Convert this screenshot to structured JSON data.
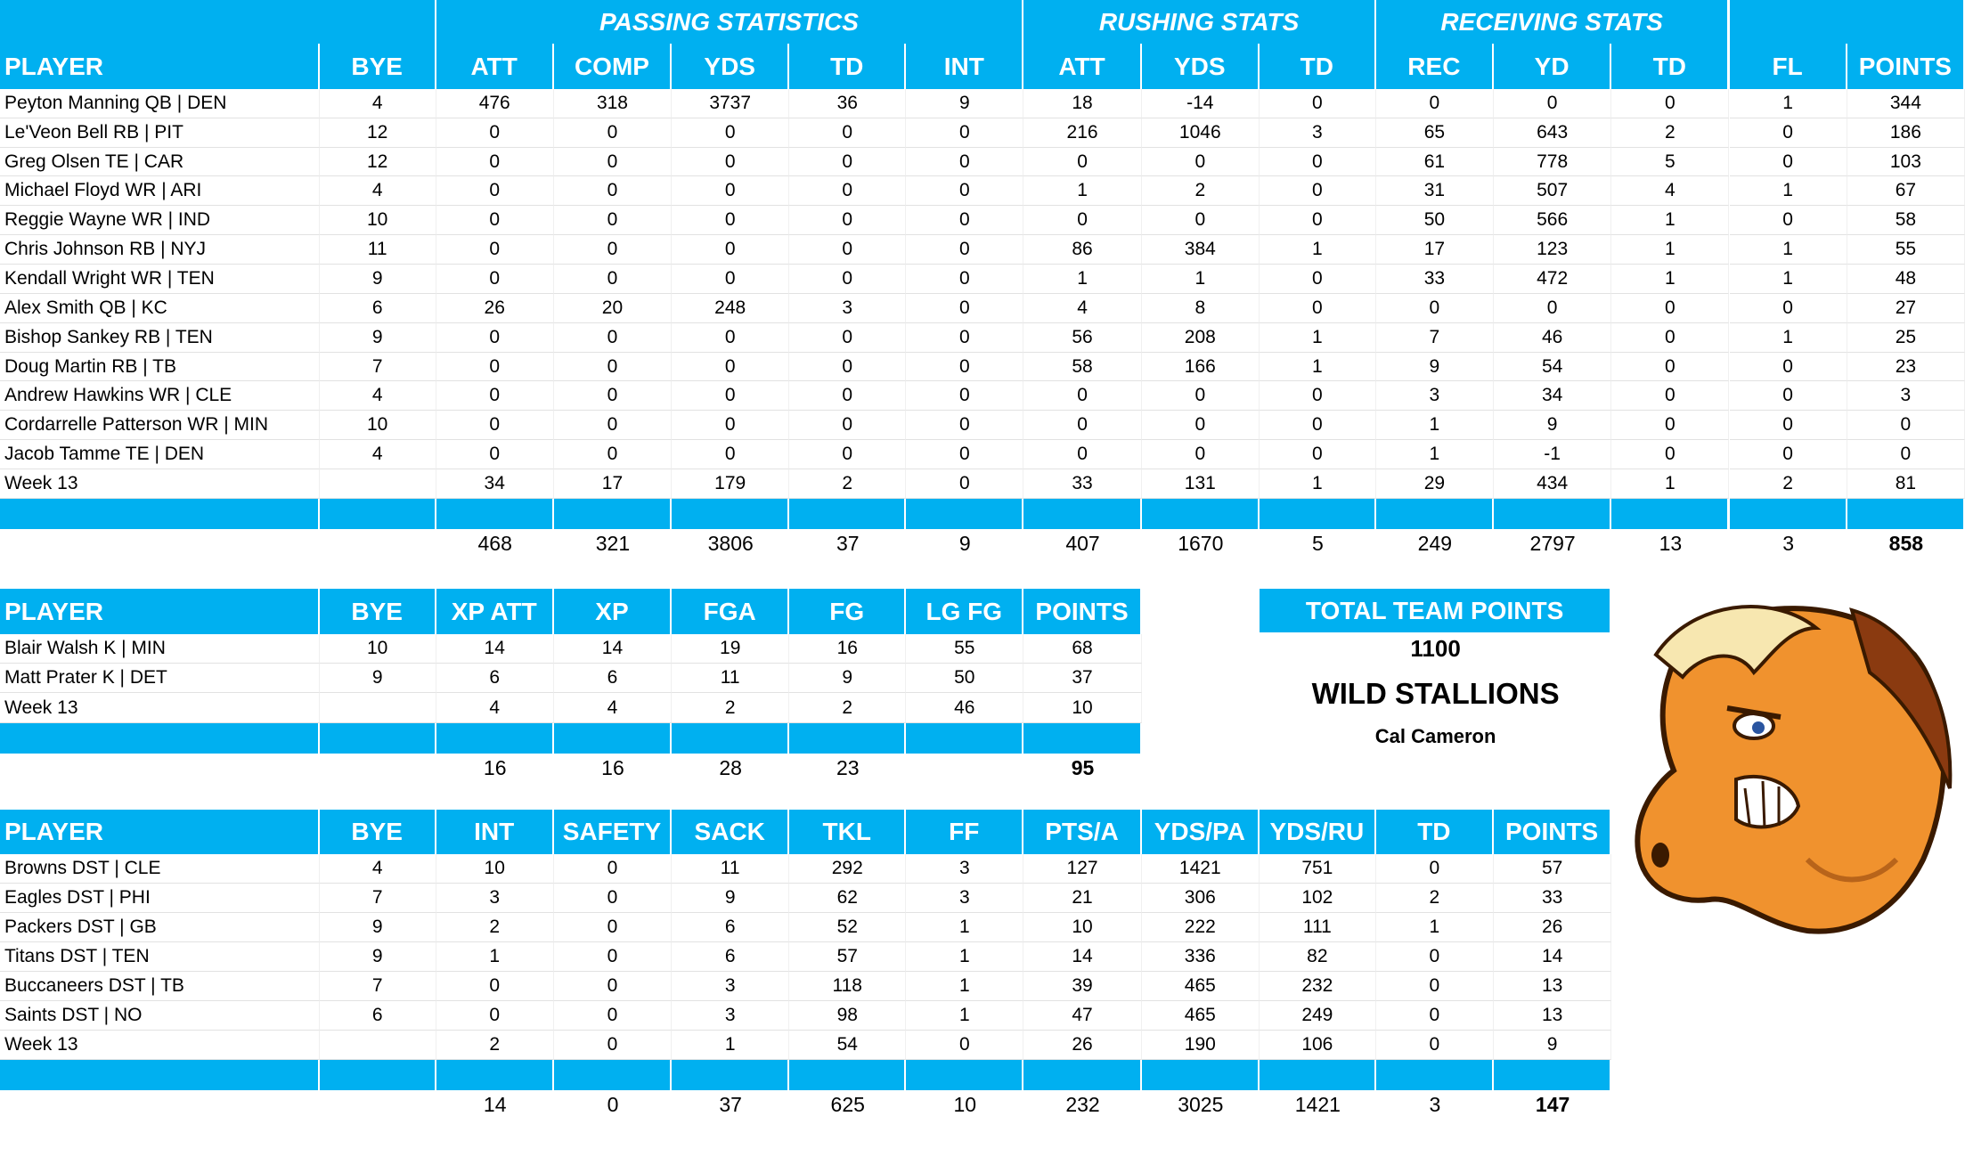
{
  "offense_table": {
    "group_headers": [
      "PASSING STATISTICS",
      "RUSHING STATS",
      "RECEIVING STATS"
    ],
    "columns": [
      "PLAYER",
      "BYE",
      "ATT",
      "COMP",
      "YDS",
      "TD",
      "INT",
      "ATT",
      "YDS",
      "TD",
      "REC",
      "YD",
      "TD",
      "FL",
      "POINTS"
    ],
    "rows": [
      [
        "Peyton Manning QB | DEN",
        4,
        476,
        318,
        3737,
        36,
        9,
        18,
        -14,
        0,
        0,
        0,
        0,
        1,
        344
      ],
      [
        "Le'Veon Bell RB | PIT",
        12,
        0,
        0,
        0,
        0,
        0,
        216,
        1046,
        3,
        65,
        643,
        2,
        0,
        186
      ],
      [
        "Greg Olsen TE | CAR",
        12,
        0,
        0,
        0,
        0,
        0,
        0,
        0,
        0,
        61,
        778,
        5,
        0,
        103
      ],
      [
        "Michael Floyd WR | ARI",
        4,
        0,
        0,
        0,
        0,
        0,
        1,
        2,
        0,
        31,
        507,
        4,
        1,
        67
      ],
      [
        "Reggie Wayne WR | IND",
        10,
        0,
        0,
        0,
        0,
        0,
        0,
        0,
        0,
        50,
        566,
        1,
        0,
        58
      ],
      [
        "Chris Johnson RB | NYJ",
        11,
        0,
        0,
        0,
        0,
        0,
        86,
        384,
        1,
        17,
        123,
        1,
        1,
        55
      ],
      [
        "Kendall Wright WR | TEN",
        9,
        0,
        0,
        0,
        0,
        0,
        1,
        1,
        0,
        33,
        472,
        1,
        1,
        48
      ],
      [
        "Alex Smith QB | KC",
        6,
        26,
        20,
        248,
        3,
        0,
        4,
        8,
        0,
        0,
        0,
        0,
        0,
        27
      ],
      [
        "Bishop Sankey RB | TEN",
        9,
        0,
        0,
        0,
        0,
        0,
        56,
        208,
        1,
        7,
        46,
        0,
        1,
        25
      ],
      [
        "Doug Martin RB | TB",
        7,
        0,
        0,
        0,
        0,
        0,
        58,
        166,
        1,
        9,
        54,
        0,
        0,
        23
      ],
      [
        "Andrew Hawkins WR | CLE",
        4,
        0,
        0,
        0,
        0,
        0,
        0,
        0,
        0,
        3,
        34,
        0,
        0,
        3
      ],
      [
        "Cordarrelle Patterson WR | MIN",
        10,
        0,
        0,
        0,
        0,
        0,
        0,
        0,
        0,
        1,
        9,
        0,
        0,
        0
      ],
      [
        "Jacob Tamme TE | DEN",
        4,
        0,
        0,
        0,
        0,
        0,
        0,
        0,
        0,
        1,
        -1,
        0,
        0,
        0
      ],
      [
        "Week 13",
        null,
        34,
        17,
        179,
        2,
        0,
        33,
        131,
        1,
        29,
        434,
        1,
        2,
        81
      ]
    ],
    "totals": [
      468,
      321,
      3806,
      37,
      9,
      407,
      1670,
      5,
      249,
      2797,
      13,
      3,
      858
    ]
  },
  "kicker_table": {
    "columns": [
      "PLAYER",
      "BYE",
      "XP ATT",
      "XP",
      "FGA",
      "FG",
      "LG FG",
      "POINTS"
    ],
    "rows": [
      [
        "Blair Walsh K | MIN",
        10,
        14,
        14,
        19,
        16,
        55,
        68
      ],
      [
        "Matt Prater K | DET",
        9,
        6,
        6,
        11,
        9,
        50,
        37
      ],
      [
        "Week 13",
        null,
        4,
        4,
        2,
        2,
        46,
        10
      ]
    ],
    "totals": [
      16,
      16,
      28,
      23,
      null,
      95
    ]
  },
  "defense_table": {
    "columns": [
      "PLAYER",
      "BYE",
      "INT",
      "SAFETY",
      "SACK",
      "TKL",
      "FF",
      "PTS/A",
      "YDS/PA",
      "YDS/RU",
      "TD",
      "POINTS"
    ],
    "rows": [
      [
        "Browns DST | CLE",
        4,
        10,
        0,
        11,
        292,
        3,
        127,
        1421,
        751,
        0,
        57
      ],
      [
        "Eagles DST | PHI",
        7,
        3,
        0,
        9,
        62,
        3,
        21,
        306,
        102,
        2,
        33
      ],
      [
        "Packers DST | GB",
        9,
        2,
        0,
        6,
        52,
        1,
        10,
        222,
        111,
        1,
        26
      ],
      [
        "Titans DST | TEN",
        9,
        1,
        0,
        6,
        57,
        1,
        14,
        336,
        82,
        0,
        14
      ],
      [
        "Buccaneers DST | TB",
        7,
        0,
        0,
        3,
        118,
        1,
        39,
        465,
        232,
        0,
        13
      ],
      [
        "Saints DST | NO",
        6,
        0,
        0,
        3,
        98,
        1,
        47,
        465,
        249,
        0,
        13
      ],
      [
        "Week 13",
        null,
        2,
        0,
        1,
        54,
        0,
        26,
        190,
        106,
        0,
        9
      ]
    ],
    "totals": [
      14,
      0,
      37,
      625,
      10,
      232,
      3025,
      1421,
      3,
      147
    ]
  },
  "team": {
    "header": "TOTAL TEAM POINTS",
    "points": 1100,
    "name": "WILD STALLIONS",
    "owner": "Cal Cameron"
  }
}
